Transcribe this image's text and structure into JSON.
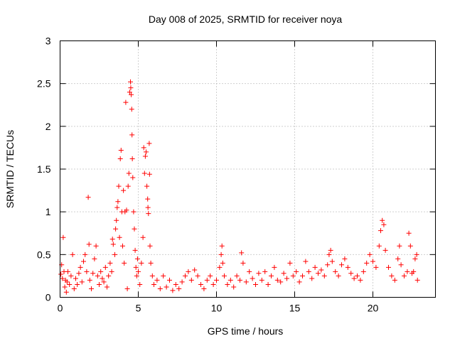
{
  "colors": {
    "series": "#ff0000",
    "grid": "#a0a0a0",
    "axis": "#000000",
    "background": "#ffffff"
  },
  "chart_data": {
    "type": "scatter",
    "title": "Day 008 of 2025, SRMTID for receiver noya",
    "xlabel": "GPS time / hours",
    "ylabel": "SRMTID / TECUs",
    "xlim": [
      0,
      24
    ],
    "ylim": [
      0,
      3
    ],
    "xticks": [
      0,
      5,
      10,
      15,
      20
    ],
    "yticks": [
      0,
      0.5,
      1,
      1.5,
      2,
      2.5,
      3
    ],
    "ytick_labels": [
      "0",
      "0.5",
      "1",
      "1.5",
      "2",
      "2.5",
      "3"
    ],
    "grid": true,
    "marker": "plus",
    "series": [
      {
        "name": "SRMTID",
        "points": [
          [
            0.05,
            0.27
          ],
          [
            0.1,
            0.38
          ],
          [
            0.15,
            0.22
          ],
          [
            0.2,
            0.7
          ],
          [
            0.25,
            0.3
          ],
          [
            0.3,
            0.12
          ],
          [
            0.35,
            0.2
          ],
          [
            0.4,
            0.06
          ],
          [
            0.45,
            0.18
          ],
          [
            0.5,
            0.3
          ],
          [
            0.6,
            0.15
          ],
          [
            0.7,
            0.25
          ],
          [
            0.8,
            0.5
          ],
          [
            0.9,
            0.1
          ],
          [
            1.0,
            0.22
          ],
          [
            1.1,
            0.15
          ],
          [
            1.2,
            0.28
          ],
          [
            1.3,
            0.35
          ],
          [
            1.4,
            0.18
          ],
          [
            1.5,
            0.42
          ],
          [
            1.6,
            0.5
          ],
          [
            1.7,
            0.3
          ],
          [
            1.8,
            1.17
          ],
          [
            1.85,
            0.62
          ],
          [
            1.9,
            0.2
          ],
          [
            2.0,
            0.1
          ],
          [
            2.1,
            0.28
          ],
          [
            2.2,
            0.45
          ],
          [
            2.3,
            0.6
          ],
          [
            2.4,
            0.25
          ],
          [
            2.5,
            0.15
          ],
          [
            2.6,
            0.3
          ],
          [
            2.7,
            0.22
          ],
          [
            2.8,
            0.18
          ],
          [
            2.9,
            0.35
          ],
          [
            3.0,
            0.12
          ],
          [
            3.1,
            0.25
          ],
          [
            3.2,
            0.4
          ],
          [
            3.3,
            0.3
          ],
          [
            3.35,
            0.68
          ],
          [
            3.4,
            0.62
          ],
          [
            3.5,
            0.5
          ],
          [
            3.55,
            0.8
          ],
          [
            3.6,
            0.9
          ],
          [
            3.65,
            1.05
          ],
          [
            3.7,
            1.12
          ],
          [
            3.75,
            1.3
          ],
          [
            3.8,
            0.7
          ],
          [
            3.85,
            1.62
          ],
          [
            3.9,
            1.72
          ],
          [
            3.95,
            1.0
          ],
          [
            4.0,
            0.6
          ],
          [
            4.05,
            1.25
          ],
          [
            4.1,
            0.4
          ],
          [
            4.15,
            1.0
          ],
          [
            4.2,
            2.28
          ],
          [
            4.25,
            1.02
          ],
          [
            4.3,
            0.1
          ],
          [
            4.35,
            1.3
          ],
          [
            4.4,
            1.45
          ],
          [
            4.45,
            2.4
          ],
          [
            4.5,
            2.52
          ],
          [
            4.52,
            2.45
          ],
          [
            4.55,
            2.37
          ],
          [
            4.58,
            2.2
          ],
          [
            4.6,
            1.9
          ],
          [
            4.62,
            1.62
          ],
          [
            4.65,
            1.4
          ],
          [
            4.7,
            1.0
          ],
          [
            4.75,
            0.8
          ],
          [
            4.8,
            0.55
          ],
          [
            4.85,
            0.35
          ],
          [
            4.9,
            0.25
          ],
          [
            4.95,
            0.45
          ],
          [
            5.0,
            0.3
          ],
          [
            5.1,
            0.15
          ],
          [
            5.2,
            0.4
          ],
          [
            5.3,
            0.7
          ],
          [
            5.35,
            1.75
          ],
          [
            5.4,
            1.45
          ],
          [
            5.45,
            1.65
          ],
          [
            5.5,
            1.7
          ],
          [
            5.55,
            1.3
          ],
          [
            5.6,
            1.15
          ],
          [
            5.62,
            1.05
          ],
          [
            5.65,
            0.98
          ],
          [
            5.7,
            1.8
          ],
          [
            5.72,
            1.44
          ],
          [
            5.75,
            0.6
          ],
          [
            5.8,
            0.4
          ],
          [
            5.9,
            0.25
          ],
          [
            6.0,
            0.15
          ],
          [
            6.2,
            0.2
          ],
          [
            6.4,
            0.1
          ],
          [
            6.6,
            0.25
          ],
          [
            6.8,
            0.12
          ],
          [
            7.0,
            0.2
          ],
          [
            7.2,
            0.08
          ],
          [
            7.4,
            0.15
          ],
          [
            7.6,
            0.1
          ],
          [
            7.8,
            0.18
          ],
          [
            8.0,
            0.25
          ],
          [
            8.2,
            0.3
          ],
          [
            8.4,
            0.2
          ],
          [
            8.6,
            0.32
          ],
          [
            8.8,
            0.25
          ],
          [
            9.0,
            0.15
          ],
          [
            9.2,
            0.1
          ],
          [
            9.4,
            0.2
          ],
          [
            9.6,
            0.25
          ],
          [
            9.8,
            0.15
          ],
          [
            10.0,
            0.2
          ],
          [
            10.2,
            0.35
          ],
          [
            10.3,
            0.5
          ],
          [
            10.35,
            0.6
          ],
          [
            10.4,
            0.4
          ],
          [
            10.5,
            0.25
          ],
          [
            10.7,
            0.15
          ],
          [
            10.9,
            0.2
          ],
          [
            11.1,
            0.12
          ],
          [
            11.3,
            0.25
          ],
          [
            11.5,
            0.2
          ],
          [
            11.6,
            0.52
          ],
          [
            11.7,
            0.4
          ],
          [
            11.9,
            0.18
          ],
          [
            12.1,
            0.3
          ],
          [
            12.3,
            0.22
          ],
          [
            12.5,
            0.15
          ],
          [
            12.7,
            0.28
          ],
          [
            12.9,
            0.2
          ],
          [
            13.1,
            0.3
          ],
          [
            13.3,
            0.15
          ],
          [
            13.5,
            0.25
          ],
          [
            13.7,
            0.35
          ],
          [
            13.9,
            0.2
          ],
          [
            14.1,
            0.18
          ],
          [
            14.3,
            0.28
          ],
          [
            14.5,
            0.22
          ],
          [
            14.7,
            0.4
          ],
          [
            14.9,
            0.25
          ],
          [
            15.1,
            0.3
          ],
          [
            15.3,
            0.18
          ],
          [
            15.5,
            0.25
          ],
          [
            15.7,
            0.42
          ],
          [
            15.9,
            0.3
          ],
          [
            16.1,
            0.22
          ],
          [
            16.3,
            0.35
          ],
          [
            16.5,
            0.28
          ],
          [
            16.7,
            0.32
          ],
          [
            16.9,
            0.25
          ],
          [
            17.1,
            0.38
          ],
          [
            17.2,
            0.5
          ],
          [
            17.3,
            0.55
          ],
          [
            17.4,
            0.42
          ],
          [
            17.6,
            0.3
          ],
          [
            17.8,
            0.25
          ],
          [
            18.0,
            0.38
          ],
          [
            18.2,
            0.45
          ],
          [
            18.4,
            0.35
          ],
          [
            18.6,
            0.28
          ],
          [
            18.8,
            0.22
          ],
          [
            19.0,
            0.25
          ],
          [
            19.2,
            0.2
          ],
          [
            19.4,
            0.3
          ],
          [
            19.6,
            0.4
          ],
          [
            19.8,
            0.5
          ],
          [
            20.0,
            0.42
          ],
          [
            20.2,
            0.35
          ],
          [
            20.4,
            0.6
          ],
          [
            20.5,
            0.78
          ],
          [
            20.6,
            0.9
          ],
          [
            20.7,
            0.85
          ],
          [
            20.8,
            0.55
          ],
          [
            21.0,
            0.35
          ],
          [
            21.2,
            0.25
          ],
          [
            21.4,
            0.2
          ],
          [
            21.6,
            0.45
          ],
          [
            21.7,
            0.6
          ],
          [
            21.8,
            0.38
          ],
          [
            22.0,
            0.25
          ],
          [
            22.2,
            0.3
          ],
          [
            22.3,
            0.75
          ],
          [
            22.4,
            0.6
          ],
          [
            22.5,
            0.28
          ],
          [
            22.6,
            0.3
          ],
          [
            22.7,
            0.45
          ],
          [
            22.8,
            0.5
          ],
          [
            22.85,
            0.2
          ]
        ]
      }
    ]
  }
}
